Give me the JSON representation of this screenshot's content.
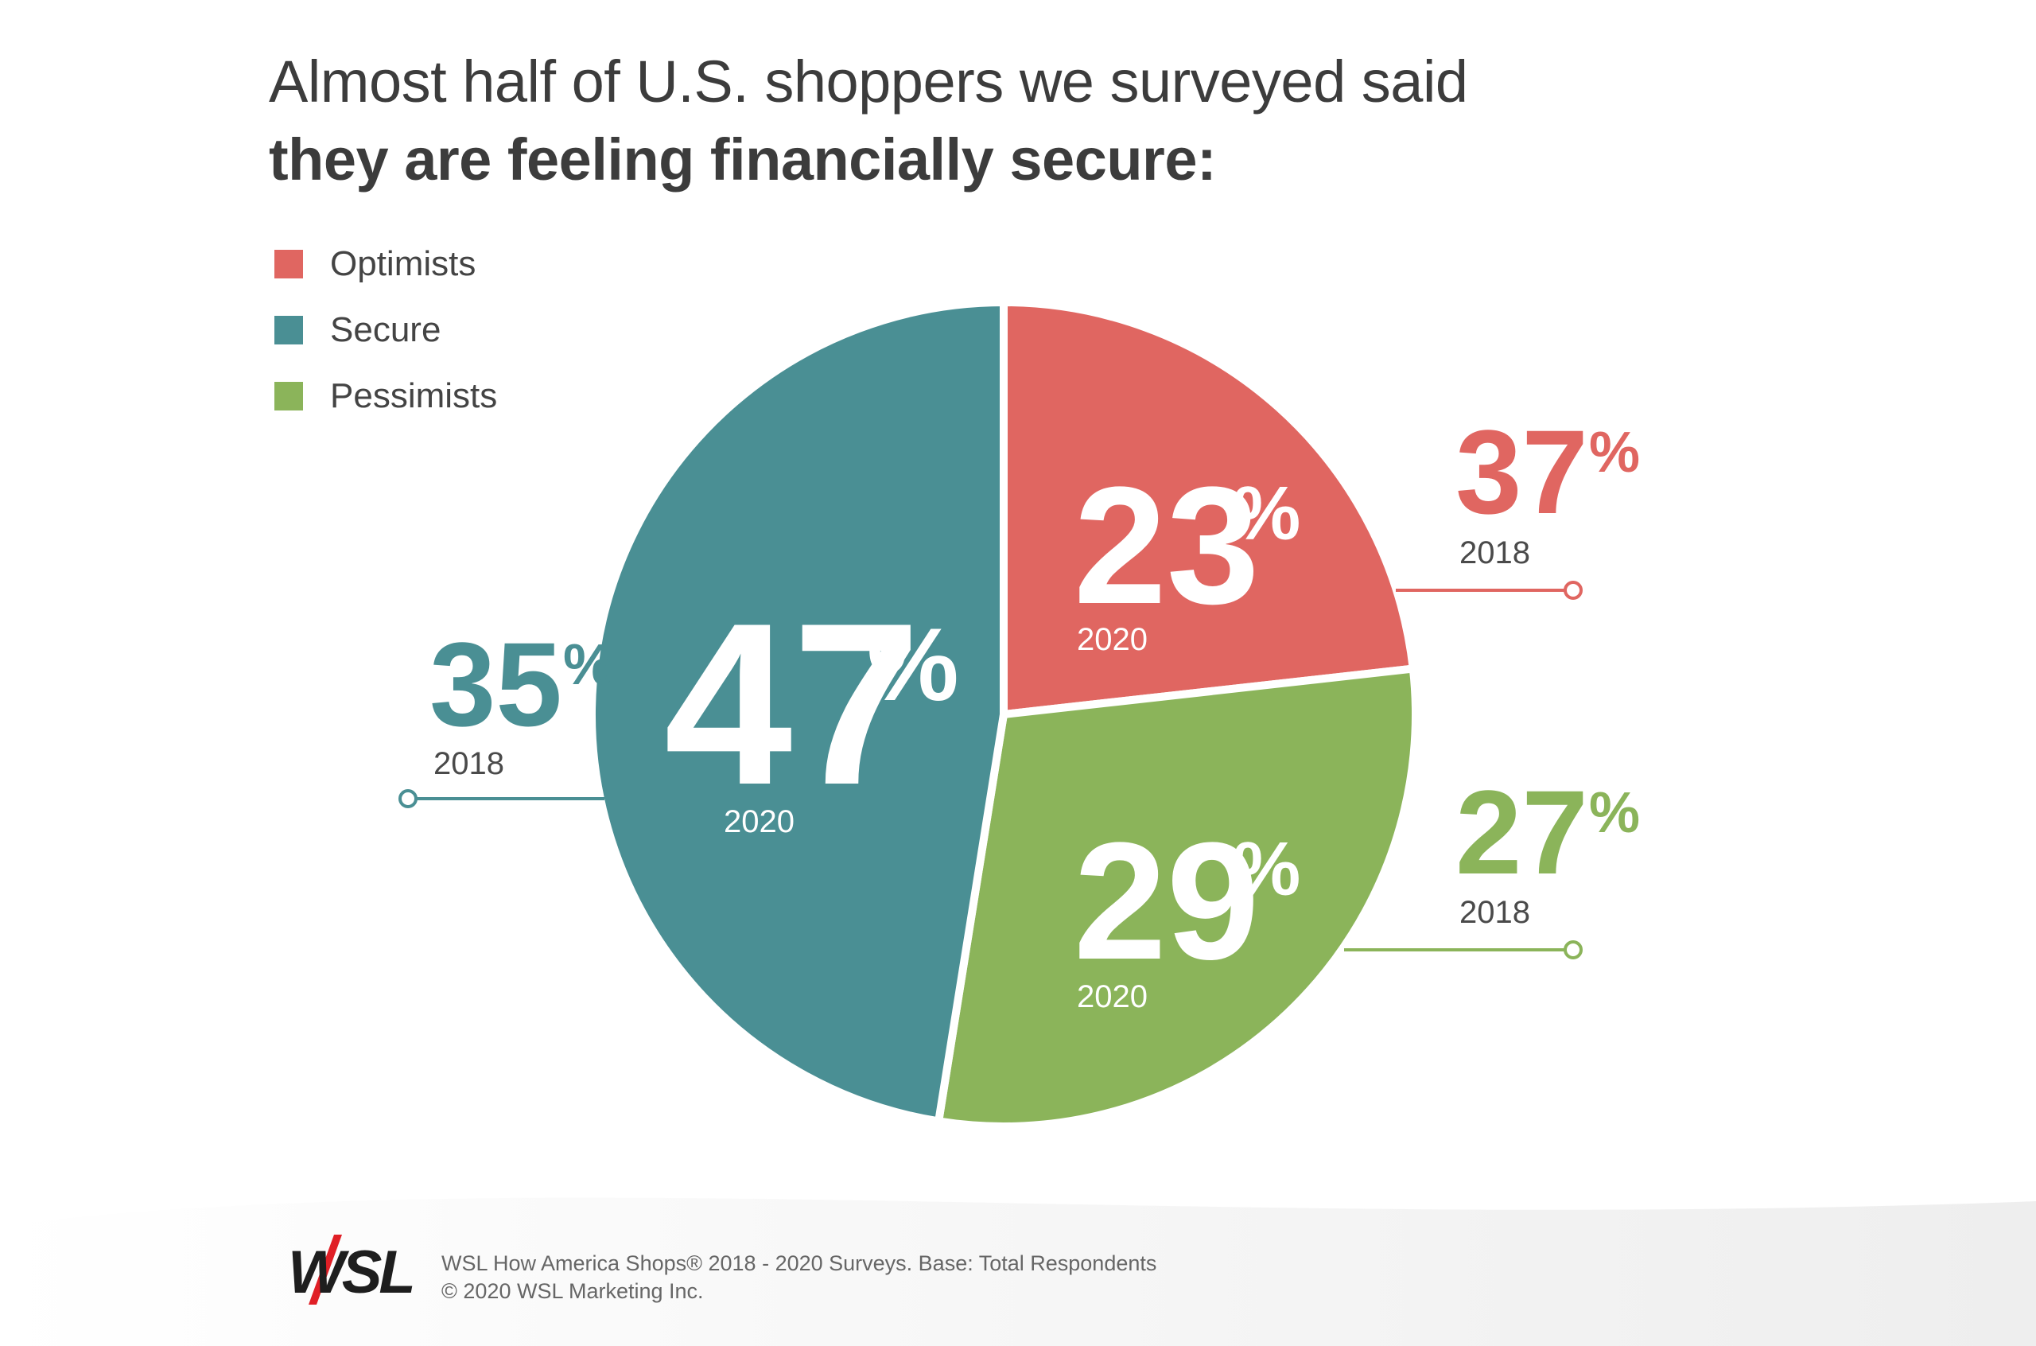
{
  "title": {
    "line1": "Almost half of U.S. shoppers we surveyed said",
    "line2": "they are feeling financially secure:"
  },
  "legend": [
    {
      "label": "Optimists",
      "color": "#e06661"
    },
    {
      "label": "Secure",
      "color": "#4a8f94"
    },
    {
      "label": "Pessimists",
      "color": "#8bb45a"
    }
  ],
  "chart_data": {
    "type": "pie",
    "title": "Almost half of U.S. shoppers we surveyed said they are feeling financially secure:",
    "legend_position": "top-left",
    "series": [
      {
        "name": "2020",
        "categories": [
          "Optimists",
          "Pessimists",
          "Secure"
        ],
        "values": [
          23,
          29,
          47
        ],
        "labels": [
          "23%",
          "29%",
          "47%"
        ],
        "year_label": "2020"
      },
      {
        "name": "2018",
        "categories": [
          "Optimists",
          "Pessimists",
          "Secure"
        ],
        "values": [
          37,
          27,
          35
        ],
        "labels": [
          "37%",
          "27%",
          "35%"
        ],
        "year_label": "2018"
      }
    ],
    "colors": {
      "Optimists": "#e06661",
      "Secure": "#4a8f94",
      "Pessimists": "#8bb45a"
    }
  },
  "footer": {
    "logo": "WSL",
    "source": "WSL How America Shops® 2018 - 2020 Surveys. Base: Total Respondents",
    "copyright": "© 2020 WSL Marketing Inc."
  }
}
